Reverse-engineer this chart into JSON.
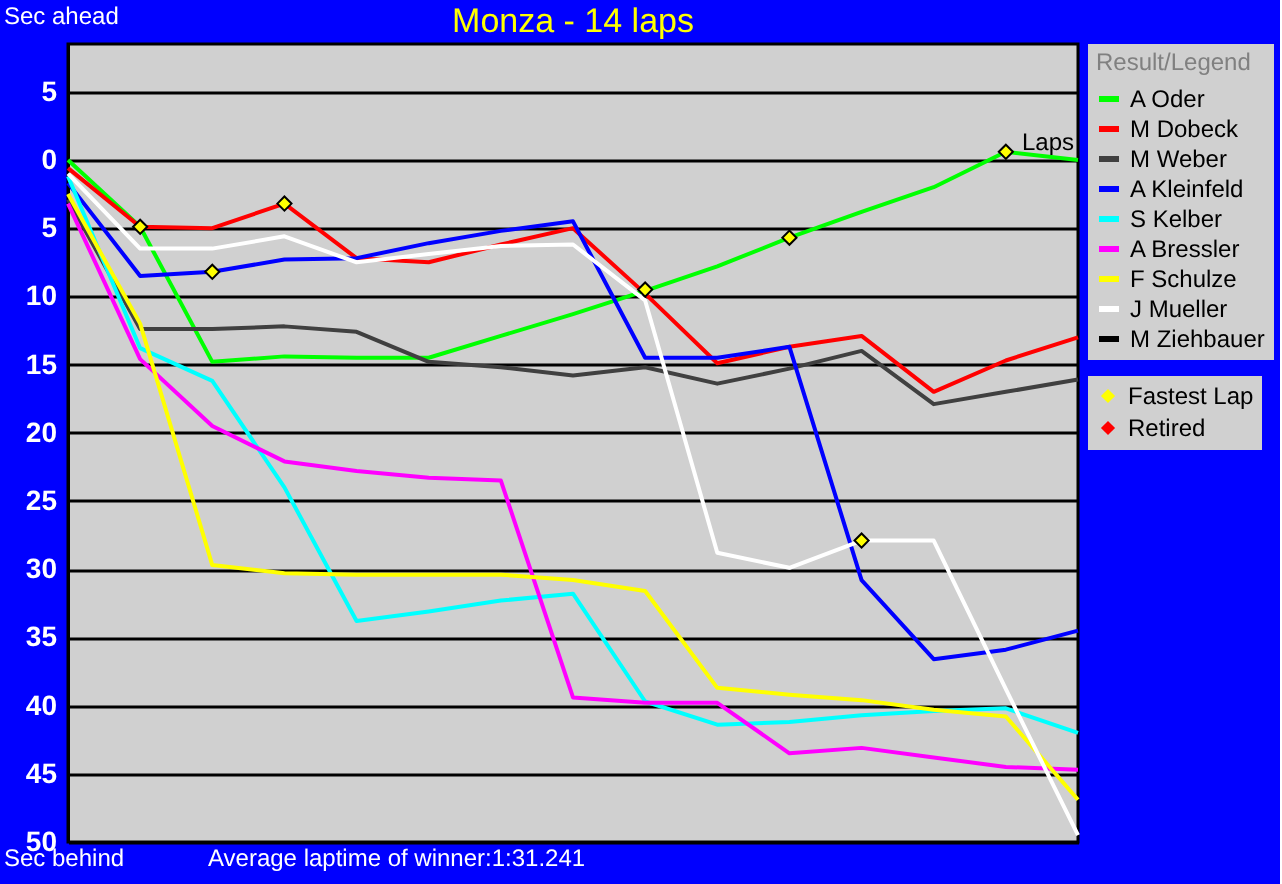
{
  "chart_data": {
    "type": "line",
    "title": "Monza - 14 laps",
    "xlabel": "Laps",
    "categories": [
      null,
      null,
      null,
      null,
      null,
      null,
      null,
      null,
      null,
      null,
      null,
      null,
      null,
      null,
      null
    ],
    "ylim": [
      50,
      -8.5
    ],
    "yticks": [
      {
        "value": -5,
        "label": "5"
      },
      0,
      5,
      10,
      15,
      20,
      25,
      30,
      35,
      40,
      45,
      50
    ],
    "grid": "y",
    "legend": "right",
    "legend_title": "Result/Legend",
    "tick_labels": "y",
    "marker": "none",
    "line_style": "solid",
    "annotations": [
      "Sec ahead",
      "Sec behind",
      "Average laptime of winner:1:31.241"
    ],
    "series": [
      {
        "name": "A Oder",
        "color": "#00ff00",
        "values": [
          0,
          4.9,
          14.8,
          14.4,
          14.5,
          14.5,
          12.9,
          11.3,
          9.6,
          7.8,
          5.7,
          3.8,
          2.0,
          -0.6,
          0
        ]
      },
      {
        "name": "M Dobeck",
        "color": "#ff0000",
        "values": [
          0.6,
          4.9,
          5.0,
          3.2,
          7.2,
          7.5,
          6.2,
          5.0,
          9.8,
          14.9,
          13.7,
          12.9,
          17.0,
          14.7,
          13.0
        ]
      },
      {
        "name": "M Weber",
        "color": "#404040",
        "values": [
          2.9,
          12.4,
          12.4,
          12.2,
          12.6,
          14.8,
          15.2,
          15.8,
          15.2,
          16.4,
          15.3,
          14.0,
          17.9,
          17.0,
          16.1
        ]
      },
      {
        "name": "A Kleinfeld",
        "color": "#0000ff",
        "values": [
          1.7,
          8.5,
          8.2,
          7.3,
          7.2,
          6.1,
          5.2,
          4.5,
          14.5,
          14.5,
          13.7,
          30.8,
          36.6,
          35.9,
          34.5
        ]
      },
      {
        "name": "S Kelber",
        "color": "#00ffff",
        "values": [
          1.2,
          13.8,
          16.2,
          24.0,
          33.8,
          33.1,
          32.3,
          31.8,
          39.7,
          41.4,
          41.2,
          40.7,
          40.4,
          40.2,
          42.0
        ]
      },
      {
        "name": "A Bressler",
        "color": "#ff00ff",
        "values": [
          3.2,
          14.6,
          19.5,
          22.1,
          22.8,
          23.3,
          23.5,
          39.4,
          39.8,
          39.8,
          43.5,
          43.1,
          43.8,
          44.5,
          44.7
        ]
      },
      {
        "name": "F Schulze",
        "color": "#ffff00",
        "values": [
          2.5,
          12.0,
          29.7,
          30.3,
          30.4,
          30.4,
          30.4,
          30.8,
          31.6,
          38.7,
          39.2,
          39.6,
          40.3,
          40.8,
          46.9
        ]
      },
      {
        "name": "J Mueller",
        "color": "#ffffff",
        "values": [
          1.0,
          6.5,
          6.5,
          5.6,
          7.5,
          6.9,
          6.3,
          6.2,
          10.3,
          28.8,
          29.9,
          27.9,
          27.9,
          38.8,
          49.5
        ]
      },
      {
        "name": "M Ziehbauer",
        "color": "#000000",
        "values": [
          null,
          null,
          null,
          null,
          null,
          null,
          null,
          null,
          null,
          null,
          null,
          null,
          null,
          null,
          null
        ]
      },
      {
        "name": "Fastest Lap",
        "type": "scatter",
        "marker": "diamond",
        "color": "#ffff00",
        "values": [
          null,
          4.9,
          8.2,
          3.2,
          null,
          null,
          null,
          null,
          9.5,
          null,
          5.7,
          27.9,
          null,
          -0.6,
          null
        ]
      },
      {
        "name": "Retired",
        "type": "scatter",
        "marker": "diamond",
        "color": "#ff0000",
        "values": [
          null,
          null,
          null,
          null,
          null,
          null,
          null,
          null,
          null,
          null,
          null,
          null,
          null,
          null,
          null
        ]
      }
    ]
  }
}
